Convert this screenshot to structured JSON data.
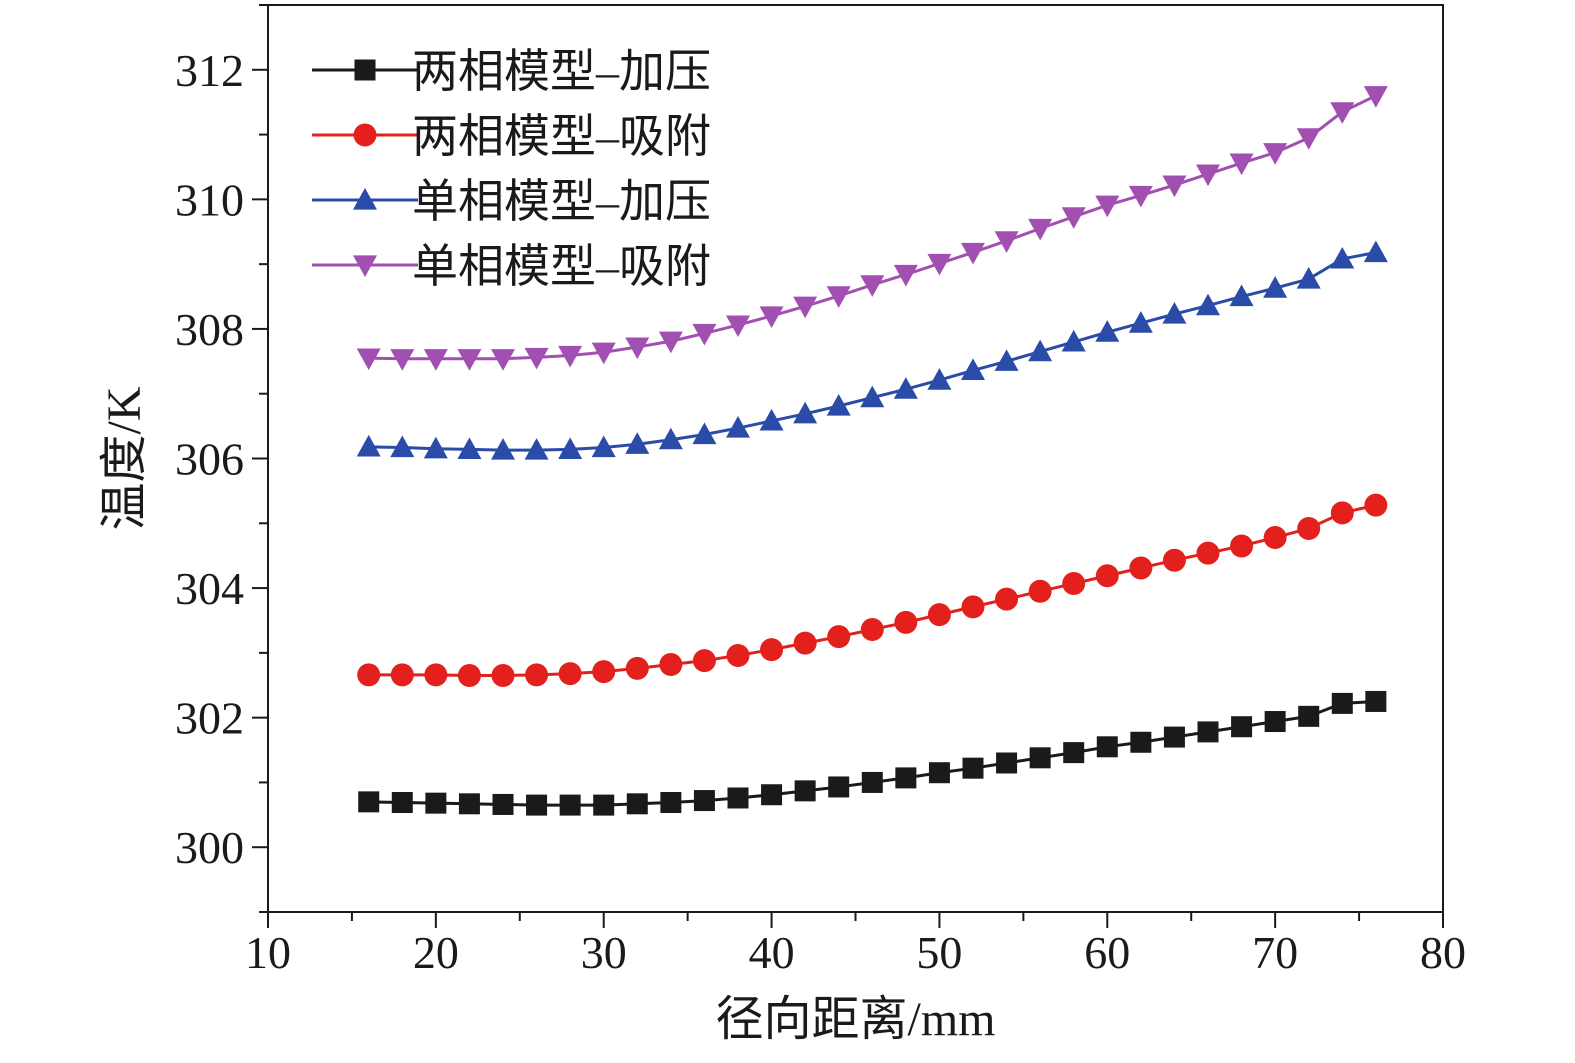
{
  "chart_data": {
    "type": "line",
    "title": "",
    "xlabel": "径向距离/mm",
    "ylabel": "温度/K",
    "xlim": [
      10,
      80
    ],
    "ylim": [
      299,
      313
    ],
    "xticks": [
      10,
      20,
      30,
      40,
      50,
      60,
      70,
      80
    ],
    "yticks": [
      300,
      302,
      304,
      306,
      308,
      310,
      312
    ],
    "grid": false,
    "legend_position": "top-left",
    "x": [
      16,
      18,
      20,
      22,
      24,
      26,
      28,
      30,
      32,
      34,
      36,
      38,
      40,
      42,
      44,
      46,
      48,
      50,
      52,
      54,
      56,
      58,
      60,
      62,
      64,
      66,
      68,
      70,
      72,
      74,
      76
    ],
    "series": [
      {
        "name": "两相模型–加压",
        "color": "#1a1a1a",
        "marker": "square",
        "values": [
          300.7,
          300.69,
          300.68,
          300.67,
          300.66,
          300.65,
          300.65,
          300.65,
          300.67,
          300.69,
          300.72,
          300.76,
          300.81,
          300.87,
          300.93,
          301.0,
          301.07,
          301.15,
          301.22,
          301.3,
          301.38,
          301.46,
          301.55,
          301.62,
          301.7,
          301.78,
          301.86,
          301.94,
          302.02,
          302.22,
          302.25
        ]
      },
      {
        "name": "两相模型–吸附",
        "color": "#e3201b",
        "marker": "circle",
        "values": [
          302.66,
          302.66,
          302.66,
          302.65,
          302.65,
          302.66,
          302.68,
          302.71,
          302.76,
          302.82,
          302.88,
          302.96,
          303.05,
          303.15,
          303.25,
          303.36,
          303.47,
          303.59,
          303.71,
          303.83,
          303.95,
          304.07,
          304.19,
          304.31,
          304.43,
          304.54,
          304.65,
          304.78,
          304.92,
          305.16,
          305.28
        ]
      },
      {
        "name": "单相模型–加压",
        "color": "#2b4ba8",
        "marker": "triangle-up",
        "values": [
          306.18,
          306.17,
          306.15,
          306.14,
          306.13,
          306.13,
          306.14,
          306.17,
          306.22,
          306.29,
          306.37,
          306.47,
          306.58,
          306.69,
          306.81,
          306.94,
          307.07,
          307.21,
          307.36,
          307.5,
          307.65,
          307.8,
          307.95,
          308.09,
          308.23,
          308.36,
          308.5,
          308.63,
          308.77,
          309.08,
          309.18
        ]
      },
      {
        "name": "单相模型–吸附",
        "color": "#a24fb2",
        "marker": "triangle-down",
        "values": [
          307.55,
          307.54,
          307.54,
          307.54,
          307.54,
          307.56,
          307.59,
          307.64,
          307.72,
          307.81,
          307.93,
          308.06,
          308.2,
          308.35,
          308.51,
          308.68,
          308.84,
          309.01,
          309.18,
          309.36,
          309.55,
          309.73,
          309.91,
          310.06,
          310.22,
          310.39,
          310.56,
          310.72,
          310.95,
          311.35,
          311.6
        ]
      }
    ]
  }
}
